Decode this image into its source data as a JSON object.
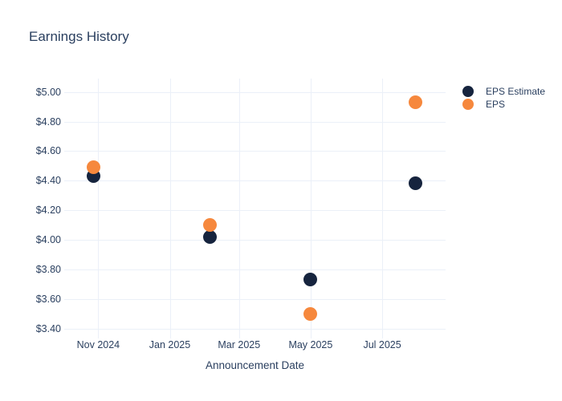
{
  "page_title": "Earnings History",
  "colors": {
    "background": "#ffffff",
    "title_text": "#2a3f5f",
    "axis_text": "#2a3f5f",
    "grid": "#EBF0F8",
    "eps_estimate": "#16243E",
    "eps": "#F6883D"
  },
  "legend": {
    "items": [
      {
        "label": "EPS Estimate",
        "color": "#16243E"
      },
      {
        "label": "EPS",
        "color": "#F6883D"
      }
    ]
  },
  "chart_data": {
    "type": "scatter",
    "title": "Earnings History",
    "xlabel": "Announcement Date",
    "ylabel": "",
    "grid": true,
    "legend_position": "right",
    "y_ticks": [
      3.4,
      3.6,
      3.8,
      4.0,
      4.2,
      4.4,
      4.6,
      4.8,
      5.0
    ],
    "y_tick_labels": [
      "$3.40",
      "$3.60",
      "$3.80",
      "$4.00",
      "$4.20",
      "$4.40",
      "$4.60",
      "$4.80",
      "$5.00"
    ],
    "ylim": [
      3.36,
      5.09
    ],
    "x_tick_dates": [
      "2024-11-01",
      "2025-01-01",
      "2025-03-01",
      "2025-05-01",
      "2025-07-01"
    ],
    "x_tick_labels": [
      "Nov 2024",
      "Jan 2025",
      "Mar 2025",
      "May 2025",
      "Jul 2025"
    ],
    "xlim_dates": [
      "2024-10-03",
      "2025-08-24"
    ],
    "marker_diameter_px": 17,
    "series": [
      {
        "name": "EPS Estimate",
        "slug": "eps-estimate",
        "color": "#16243E",
        "points": [
          {
            "date": "2024-10-28",
            "value": 4.43
          },
          {
            "date": "2025-02-04",
            "value": 4.02
          },
          {
            "date": "2025-05-01",
            "value": 3.73
          },
          {
            "date": "2025-07-29",
            "value": 4.38
          }
        ]
      },
      {
        "name": "EPS",
        "slug": "eps",
        "color": "#F6883D",
        "points": [
          {
            "date": "2024-10-28",
            "value": 4.49
          },
          {
            "date": "2025-02-04",
            "value": 4.1
          },
          {
            "date": "2025-05-01",
            "value": 3.5
          },
          {
            "date": "2025-07-29",
            "value": 4.93
          }
        ]
      }
    ]
  }
}
